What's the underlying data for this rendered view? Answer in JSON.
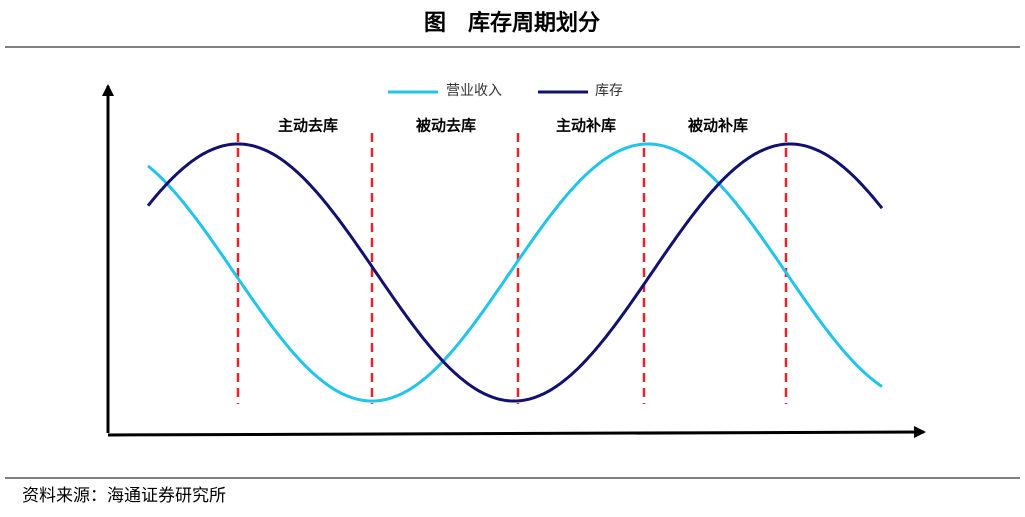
{
  "title": "图　库存周期划分",
  "legend": [
    "营业收入",
    "库存"
  ],
  "phases": [
    "主动去库",
    "被动去库",
    "主动补库",
    "被动补库"
  ],
  "source": "资料来源：海通证券研究所"
}
